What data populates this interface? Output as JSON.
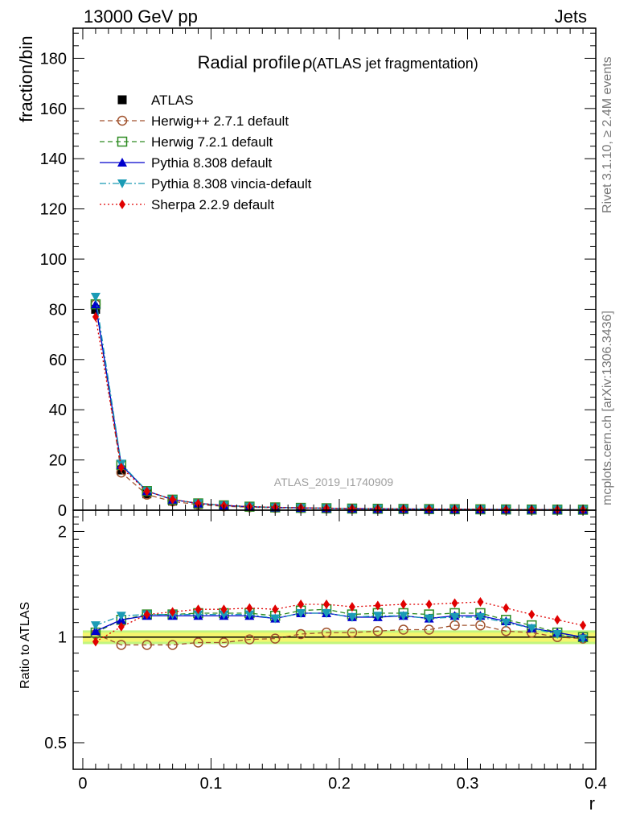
{
  "header": {
    "left": "13000 GeV pp",
    "right": "Jets"
  },
  "side_labels": {
    "rivet": "Rivet 3.1.10, ≥ 2.4M events",
    "mcplots": "mcplots.cern.ch [arXiv:1306.3436]"
  },
  "chart_data": [
    {
      "type": "line",
      "title_main": "Radial profile",
      "title_symbol": "ρ",
      "title_note": "(ATLAS jet fragmentation)",
      "watermark": "ATLAS_2019_I1740909",
      "ylabel": "fraction/bin",
      "xlim": [
        -0.0075,
        0.4
      ],
      "ylim": [
        0,
        192
      ],
      "yticks": [
        0,
        20,
        40,
        60,
        80,
        100,
        120,
        140,
        160,
        180
      ],
      "ytick_labels": [
        "0",
        "20",
        "40",
        "60",
        "80",
        "100",
        "120",
        "140",
        "160",
        "180"
      ],
      "grid": false,
      "legend_position": "top-left",
      "x": [
        0.01,
        0.03,
        0.05,
        0.07,
        0.09,
        0.11,
        0.13,
        0.15,
        0.17,
        0.19,
        0.21,
        0.23,
        0.25,
        0.27,
        0.29,
        0.31,
        0.33,
        0.35,
        0.37,
        0.39
      ],
      "series": [
        {
          "name": "ATLAS",
          "color": "#000000",
          "marker": "square-filled",
          "line": "none",
          "values": [
            80,
            16,
            6.5,
            3.6,
            2.3,
            1.6,
            1.2,
            0.95,
            0.78,
            0.65,
            0.55,
            0.47,
            0.41,
            0.36,
            0.32,
            0.28,
            0.25,
            0.22,
            0.2,
            0.18
          ]
        },
        {
          "name": "Herwig++ 2.7.1 default",
          "color": "#a0522d",
          "marker": "circle-open",
          "line": "dashed",
          "values": [
            82,
            15,
            6.2,
            3.5,
            2.2,
            1.55,
            1.18,
            0.94,
            0.8,
            0.67,
            0.57,
            0.49,
            0.43,
            0.38,
            0.35,
            0.31,
            0.26,
            0.23,
            0.2,
            0.18
          ]
        },
        {
          "name": "Herwig 7.2.1 default",
          "color": "#2e8b22",
          "marker": "square-open",
          "line": "dashed",
          "values": [
            82,
            18,
            7.6,
            4.2,
            2.7,
            1.9,
            1.4,
            1.1,
            0.93,
            0.78,
            0.64,
            0.55,
            0.48,
            0.42,
            0.37,
            0.33,
            0.28,
            0.24,
            0.21,
            0.18
          ]
        },
        {
          "name": "Pythia 8.308 default",
          "color": "#0000cc",
          "marker": "triangle-up",
          "line": "solid",
          "values": [
            82,
            18,
            7.6,
            4.2,
            2.7,
            1.87,
            1.4,
            1.09,
            0.91,
            0.77,
            0.63,
            0.54,
            0.48,
            0.41,
            0.37,
            0.33,
            0.28,
            0.23,
            0.2,
            0.18
          ]
        },
        {
          "name": "Pythia 8.308 vincia-default",
          "color": "#1a9bb5",
          "marker": "triangle-down",
          "line": "dashdot",
          "values": [
            85,
            18.5,
            7.6,
            4.2,
            2.7,
            1.87,
            1.4,
            1.08,
            0.91,
            0.77,
            0.63,
            0.55,
            0.48,
            0.42,
            0.37,
            0.33,
            0.28,
            0.23,
            0.2,
            0.18
          ]
        },
        {
          "name": "Sherpa 2.2.9 default",
          "color": "#e00000",
          "marker": "diamond",
          "line": "dotted",
          "values": [
            77,
            17,
            7.5,
            4.3,
            2.7,
            1.9,
            1.45,
            1.15,
            0.97,
            0.82,
            0.68,
            0.59,
            0.51,
            0.45,
            0.4,
            0.36,
            0.3,
            0.26,
            0.23,
            0.2
          ]
        }
      ]
    },
    {
      "type": "line",
      "ylabel": "Ratio to ATLAS",
      "xlabel": "r",
      "xlim": [
        -0.0075,
        0.4
      ],
      "ylim": [
        0.42,
        2.3
      ],
      "yscale": "log",
      "yticks": [
        0.5,
        1,
        2
      ],
      "ytick_labels": [
        "0.5",
        "1",
        "2"
      ],
      "xticks": [
        0,
        0.1,
        0.2,
        0.3,
        0.4
      ],
      "xtick_labels": [
        "0",
        "0.1",
        "0.2",
        "0.3",
        "0.4"
      ],
      "reference_line": 1.0,
      "uncertainty_band": {
        "inner": [
          0.97,
          1.03
        ],
        "outer": [
          0.955,
          1.045
        ],
        "inner_color": "#f5f56e",
        "outer_color": "#c2f57e"
      },
      "x": [
        0.01,
        0.03,
        0.05,
        0.07,
        0.09,
        0.11,
        0.13,
        0.15,
        0.17,
        0.19,
        0.21,
        0.23,
        0.25,
        0.27,
        0.29,
        0.31,
        0.33,
        0.35,
        0.37,
        0.39
      ],
      "series": [
        {
          "name": "Herwig++ 2.7.1 default",
          "color": "#a0522d",
          "marker": "circle-open",
          "line": "dashed",
          "values": [
            1.02,
            0.95,
            0.95,
            0.95,
            0.965,
            0.965,
            0.985,
            0.99,
            1.02,
            1.03,
            1.03,
            1.04,
            1.05,
            1.05,
            1.08,
            1.08,
            1.04,
            1.03,
            1.0,
            0.99
          ]
        },
        {
          "name": "Herwig 7.2.1 default",
          "color": "#2e8b22",
          "marker": "square-open",
          "line": "dashed",
          "values": [
            1.03,
            1.12,
            1.16,
            1.16,
            1.17,
            1.17,
            1.17,
            1.15,
            1.19,
            1.2,
            1.16,
            1.17,
            1.17,
            1.16,
            1.17,
            1.17,
            1.12,
            1.08,
            1.03,
            1.0
          ]
        },
        {
          "name": "Pythia 8.308 default",
          "color": "#0000cc",
          "marker": "triangle-up",
          "line": "solid",
          "values": [
            1.04,
            1.12,
            1.15,
            1.15,
            1.15,
            1.15,
            1.15,
            1.13,
            1.17,
            1.17,
            1.14,
            1.14,
            1.15,
            1.13,
            1.15,
            1.15,
            1.11,
            1.06,
            1.03,
            1.0
          ]
        },
        {
          "name": "Pythia 8.308 vincia-default",
          "color": "#1a9bb5",
          "marker": "triangle-down",
          "line": "dashdot",
          "values": [
            1.08,
            1.15,
            1.16,
            1.16,
            1.16,
            1.16,
            1.16,
            1.13,
            1.17,
            1.17,
            1.14,
            1.15,
            1.15,
            1.13,
            1.14,
            1.14,
            1.1,
            1.06,
            1.02,
            0.99
          ]
        },
        {
          "name": "Sherpa 2.2.9 default",
          "color": "#e00000",
          "marker": "diamond",
          "line": "dotted",
          "values": [
            0.97,
            1.07,
            1.16,
            1.18,
            1.2,
            1.2,
            1.21,
            1.2,
            1.24,
            1.24,
            1.22,
            1.23,
            1.24,
            1.24,
            1.25,
            1.26,
            1.21,
            1.16,
            1.12,
            1.08
          ]
        }
      ]
    }
  ]
}
